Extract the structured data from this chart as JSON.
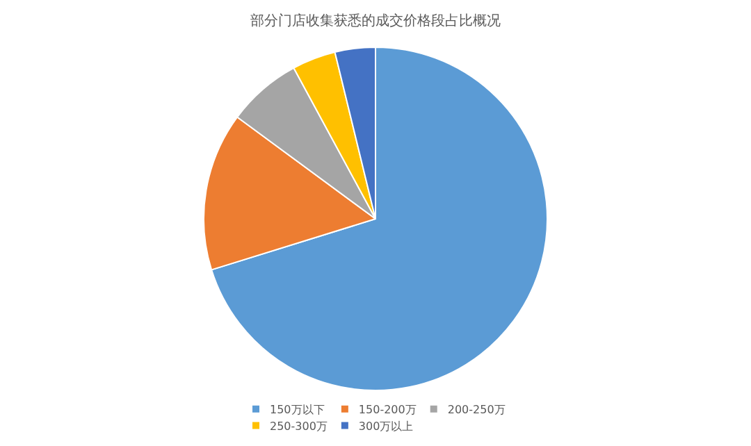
{
  "chart_data": {
    "type": "pie",
    "title": "部分门店收集获悉的成交价格段占比概况",
    "categories": [
      "150万以下",
      "150-200万",
      "200-250万",
      "250-300万",
      "300万以上"
    ],
    "values": [
      70.2,
      14.9,
      7.0,
      4.1,
      3.8
    ],
    "colors": [
      "#5b9bd5",
      "#ed7d31",
      "#a5a5a5",
      "#ffc000",
      "#4472c4"
    ],
    "legend": "bottom"
  }
}
